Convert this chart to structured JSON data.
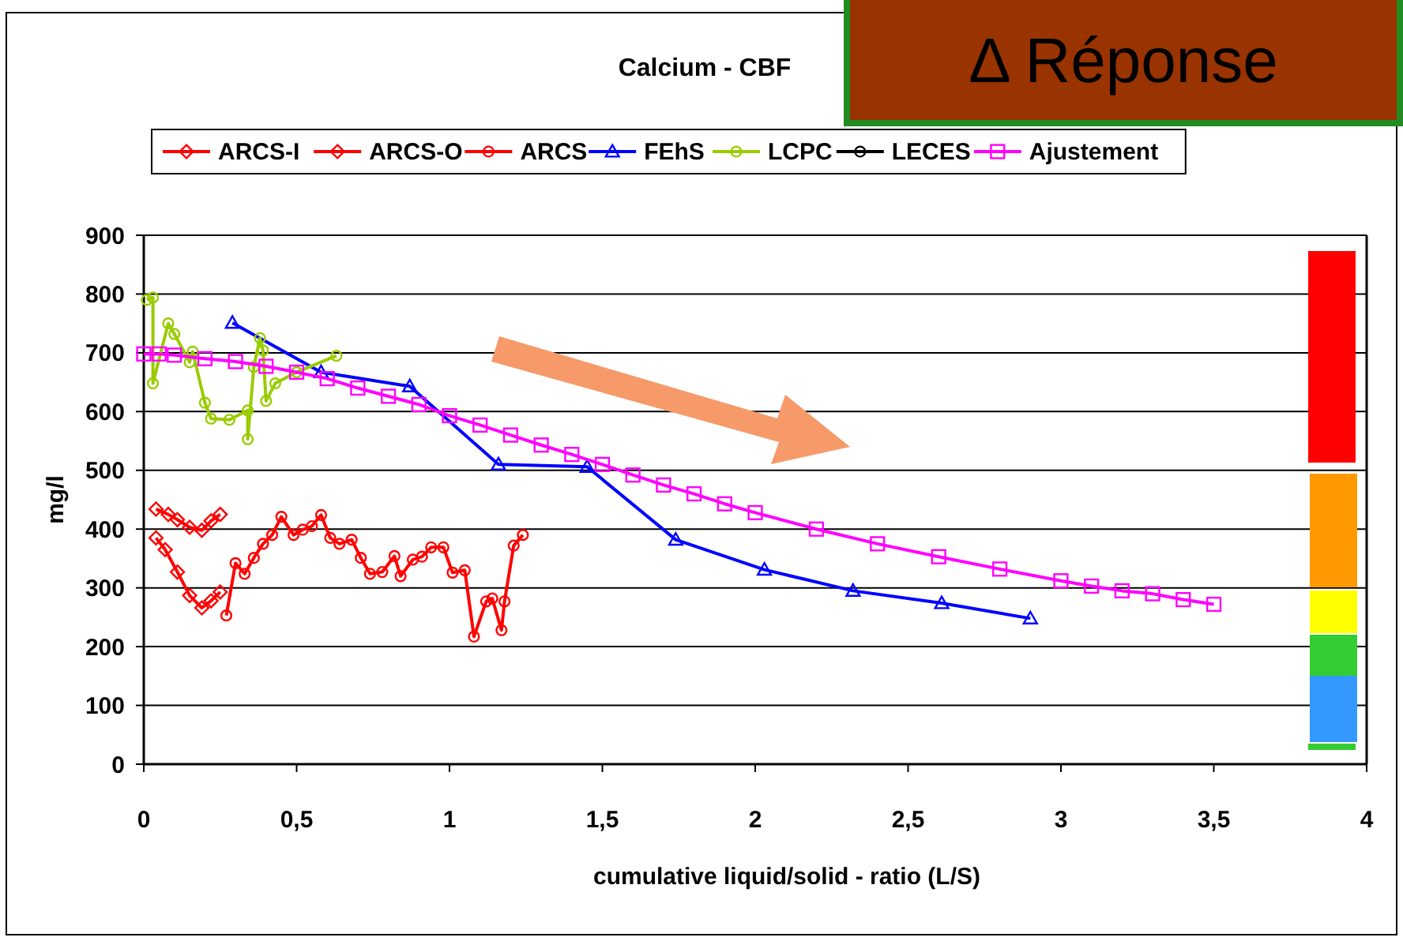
{
  "chart_data": {
    "type": "line",
    "title": "Calcium - CBF",
    "xlabel": "cumulative liquid/solid - ratio (L/S)",
    "ylabel": "mg/l",
    "annotations": [
      "Δ Réponse"
    ],
    "xlim": [
      0,
      4
    ],
    "xticks": [
      0,
      {
        "value": 0.5,
        "label": "0,5"
      },
      1,
      {
        "value": 1.5,
        "label": "1,5"
      },
      2,
      {
        "value": 2.5,
        "label": "2,5"
      },
      3,
      {
        "value": 3.5,
        "label": "3,5"
      },
      4
    ],
    "ylim": [
      0,
      900
    ],
    "yticks": [
      0,
      100,
      200,
      300,
      400,
      500,
      600,
      700,
      800,
      900
    ],
    "grid": "y",
    "legend": "top",
    "series": [
      {
        "name": "ARCS-I",
        "color": "#ff0000",
        "marker": "diamond",
        "x": [
          0.04,
          0.08,
          0.11,
          0.15,
          0.19,
          0.22,
          0.25
        ],
        "values": [
          434,
          425,
          416,
          403,
          398,
          414,
          425
        ]
      },
      {
        "name": "ARCS-O",
        "color": "#ff0000",
        "marker": "diamond",
        "x": [
          0.04,
          0.07,
          0.11,
          0.15,
          0.19,
          0.22,
          0.25
        ],
        "values": [
          385,
          365,
          327,
          287,
          266,
          278,
          293
        ]
      },
      {
        "name": "ARCS",
        "color": "#ff0000",
        "marker": "circle",
        "x": [
          0.27,
          0.3,
          0.33,
          0.36,
          0.39,
          0.42,
          0.45,
          0.49,
          0.52,
          0.55,
          0.58,
          0.61,
          0.64,
          0.68,
          0.71,
          0.74,
          0.78,
          0.82,
          0.84,
          0.88,
          0.91,
          0.94,
          0.98,
          1.01,
          1.05,
          1.08,
          1.12,
          1.14,
          1.17,
          1.18,
          1.21,
          1.24
        ],
        "values": [
          253,
          342,
          324,
          351,
          375,
          390,
          421,
          390,
          399,
          405,
          424,
          385,
          375,
          382,
          351,
          324,
          327,
          354,
          320,
          348,
          353,
          369,
          369,
          326,
          330,
          217,
          277,
          282,
          228,
          277,
          372,
          390
        ]
      },
      {
        "name": "FEhS",
        "color": "#0000ff",
        "marker": "triangle",
        "x": [
          0.29,
          0.58,
          0.87,
          1.16,
          1.45,
          1.74,
          2.03,
          2.32,
          2.61,
          2.9
        ],
        "values": [
          751,
          667,
          643,
          510,
          506,
          382,
          331,
          295,
          274,
          248
        ]
      },
      {
        "name": "LCPC",
        "color": "#99cc00",
        "marker": "circle",
        "x": [
          0.01,
          0.03,
          0.03,
          0.08,
          0.1,
          0.15,
          0.16,
          0.2,
          0.22,
          0.28,
          0.34,
          0.34,
          0.36,
          0.38,
          0.39,
          0.4,
          0.43,
          0.5,
          0.63
        ],
        "values": [
          790,
          794,
          648,
          750,
          732,
          684,
          702,
          615,
          588,
          586,
          602,
          553,
          676,
          725,
          704,
          618,
          648,
          667,
          695
        ]
      },
      {
        "name": "LECES",
        "color": "#000000",
        "marker": "circle"
      },
      {
        "name": "Ajustement",
        "color": "#ff00ff",
        "marker": "square",
        "x": [
          0,
          0.05,
          0.1,
          0.2,
          0.3,
          0.4,
          0.5,
          0.6,
          0.7,
          0.8,
          0.9,
          1.0,
          1.1,
          1.2,
          1.3,
          1.4,
          1.5,
          1.6,
          1.7,
          1.8,
          1.9,
          2.0,
          2.2,
          2.4,
          2.6,
          2.8,
          3.0,
          3.1,
          3.2,
          3.3,
          3.4,
          3.5
        ],
        "values": [
          698,
          698,
          696,
          690,
          685,
          677,
          667,
          656,
          640,
          626,
          612,
          593,
          577,
          560,
          543,
          527,
          510,
          492,
          475,
          460,
          443,
          428,
          400,
          375,
          353,
          332,
          312,
          303,
          295,
          290,
          280,
          272
        ]
      }
    ]
  }
}
